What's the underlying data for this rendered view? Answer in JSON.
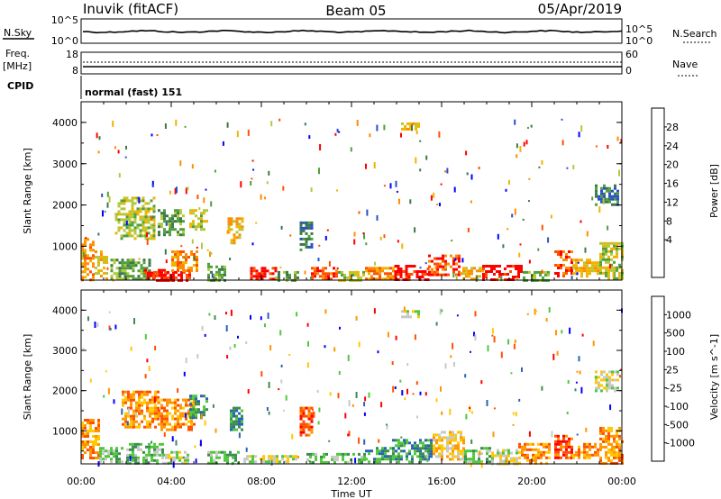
{
  "header": {
    "station": "Inuvik (fitACF)",
    "beam": "Beam 05",
    "date": "05/Apr/2019"
  },
  "param_panels": {
    "nsky_label": "N.Sky",
    "nsearch_label": "N.Search",
    "freq_label": "Freq.",
    "freq_unit": "[MHz]",
    "nave_label": "Nave",
    "cpid_label": "CPID",
    "cpid_value": "normal (fast) 151",
    "left_ticks_top": [
      "10^5",
      "10^0"
    ],
    "right_ticks_top": [
      "10^5",
      "10^0"
    ],
    "left_ticks_freq": [
      "18",
      "8"
    ],
    "right_ticks_nave": [
      "60",
      "0"
    ]
  },
  "chart_data": [
    {
      "type": "heatmap",
      "name": "power-panel",
      "ylabel": "Slant Range [km]",
      "xlabel": "",
      "x_ticks": [
        "00:00",
        "04:00",
        "08:00",
        "12:00",
        "16:00",
        "20:00",
        "00:00"
      ],
      "y_ticks": [
        1000,
        2000,
        3000,
        4000
      ],
      "xlim": [
        0,
        24
      ],
      "ylim": [
        180,
        4500
      ],
      "colorbar": {
        "label": "Power [dB]",
        "ticks": [
          "28",
          "24",
          "20",
          "16",
          "12",
          "8",
          "4"
        ],
        "colors": [
          "#0000ff",
          "#2850c8",
          "#3c7846",
          "#50a03c",
          "#b4c83c",
          "#f0b400",
          "#ff8c00",
          "#ff5000",
          "#ff0000"
        ]
      },
      "blobs": [
        {
          "x0": 0.0,
          "x1": 0.6,
          "r0": 200,
          "r1": 1200,
          "c": 6
        },
        {
          "x0": 0.6,
          "x1": 1.2,
          "r0": 200,
          "r1": 900,
          "c": 5
        },
        {
          "x0": 1.3,
          "x1": 3.0,
          "r0": 200,
          "r1": 700,
          "c": 3
        },
        {
          "x0": 1.5,
          "x1": 3.2,
          "r0": 1200,
          "r1": 2200,
          "c": 4
        },
        {
          "x0": 2.8,
          "x1": 3.8,
          "r0": 200,
          "r1": 450,
          "c": 8
        },
        {
          "x0": 3.2,
          "x1": 4.8,
          "r0": 200,
          "r1": 400,
          "c": 8
        },
        {
          "x0": 4.0,
          "x1": 5.2,
          "r0": 400,
          "r1": 900,
          "c": 6
        },
        {
          "x0": 3.4,
          "x1": 4.6,
          "r0": 1300,
          "r1": 1900,
          "c": 3
        },
        {
          "x0": 4.8,
          "x1": 5.6,
          "r0": 1400,
          "r1": 1900,
          "c": 4
        },
        {
          "x0": 5.6,
          "x1": 6.4,
          "r0": 200,
          "r1": 600,
          "c": 3
        },
        {
          "x0": 6.5,
          "x1": 7.2,
          "r0": 1100,
          "r1": 1700,
          "c": 5
        },
        {
          "x0": 7.5,
          "x1": 8.6,
          "r0": 200,
          "r1": 500,
          "c": 8
        },
        {
          "x0": 8.6,
          "x1": 9.6,
          "r0": 200,
          "r1": 400,
          "c": 3
        },
        {
          "x0": 9.7,
          "x1": 10.3,
          "r0": 900,
          "r1": 1600,
          "c": 2
        },
        {
          "x0": 10.2,
          "x1": 11.4,
          "r0": 200,
          "r1": 500,
          "c": 7
        },
        {
          "x0": 11.4,
          "x1": 12.6,
          "r0": 200,
          "r1": 400,
          "c": 4
        },
        {
          "x0": 12.6,
          "x1": 13.8,
          "r0": 200,
          "r1": 500,
          "c": 6
        },
        {
          "x0": 13.9,
          "x1": 15.4,
          "r0": 200,
          "r1": 550,
          "c": 8
        },
        {
          "x0": 14.2,
          "x1": 15.0,
          "r0": 3850,
          "r1": 4000,
          "c": 5
        },
        {
          "x0": 15.4,
          "x1": 16.8,
          "r0": 300,
          "r1": 800,
          "c": 7
        },
        {
          "x0": 16.8,
          "x1": 17.8,
          "r0": 200,
          "r1": 500,
          "c": 5
        },
        {
          "x0": 17.8,
          "x1": 19.6,
          "r0": 200,
          "r1": 550,
          "c": 8
        },
        {
          "x0": 19.6,
          "x1": 20.8,
          "r0": 200,
          "r1": 400,
          "c": 3
        },
        {
          "x0": 21.0,
          "x1": 21.8,
          "r0": 300,
          "r1": 900,
          "c": 7
        },
        {
          "x0": 21.8,
          "x1": 23.0,
          "r0": 300,
          "r1": 700,
          "c": 5
        },
        {
          "x0": 23.0,
          "x1": 24.0,
          "r0": 200,
          "r1": 1100,
          "c": 4
        },
        {
          "x0": 22.8,
          "x1": 23.8,
          "r0": 2000,
          "r1": 2500,
          "c": 2
        }
      ]
    },
    {
      "type": "heatmap",
      "name": "velocity-panel",
      "ylabel": "Slant Range [km]",
      "xlabel": "Time UT",
      "x_ticks": [
        "00:00",
        "04:00",
        "08:00",
        "12:00",
        "16:00",
        "20:00",
        "00:00"
      ],
      "y_ticks": [
        1000,
        2000,
        3000,
        4000
      ],
      "xlim": [
        0,
        24
      ],
      "ylim": [
        180,
        4500
      ],
      "colorbar": {
        "label": "Velocity [m s^-1]",
        "ticks": [
          "1000",
          "500",
          "100",
          "25",
          "-25",
          "-100",
          "-500",
          "-1000"
        ],
        "colors": [
          "#ff0000",
          "#ff5000",
          "#ff9600",
          "#ffc800",
          "#c8c8c8",
          "#50c83c",
          "#3c8c50",
          "#2864b4",
          "#0000ff"
        ]
      },
      "blobs": [
        {
          "x0": 0.0,
          "x1": 0.8,
          "r0": 300,
          "r1": 1300,
          "c": 2
        },
        {
          "x0": 0.8,
          "x1": 1.8,
          "r0": 200,
          "r1": 600,
          "c": 5
        },
        {
          "x0": 1.8,
          "x1": 3.4,
          "r0": 1100,
          "r1": 2000,
          "c": 2
        },
        {
          "x0": 2.0,
          "x1": 3.6,
          "r0": 200,
          "r1": 700,
          "c": 5
        },
        {
          "x0": 3.6,
          "x1": 4.8,
          "r0": 200,
          "r1": 500,
          "c": 4
        },
        {
          "x0": 3.4,
          "x1": 5.0,
          "r0": 1000,
          "r1": 1800,
          "c": 2
        },
        {
          "x0": 4.8,
          "x1": 5.6,
          "r0": 1300,
          "r1": 1900,
          "c": 6
        },
        {
          "x0": 5.6,
          "x1": 7.0,
          "r0": 200,
          "r1": 500,
          "c": 5
        },
        {
          "x0": 6.6,
          "x1": 7.2,
          "r0": 1000,
          "r1": 1600,
          "c": 6
        },
        {
          "x0": 7.2,
          "x1": 9.6,
          "r0": 200,
          "r1": 400,
          "c": 4
        },
        {
          "x0": 9.7,
          "x1": 10.3,
          "r0": 900,
          "r1": 1600,
          "c": 1
        },
        {
          "x0": 10.0,
          "x1": 12.6,
          "r0": 200,
          "r1": 450,
          "c": 5
        },
        {
          "x0": 12.6,
          "x1": 13.8,
          "r0": 200,
          "r1": 600,
          "c": 6
        },
        {
          "x0": 13.8,
          "x1": 15.6,
          "r0": 200,
          "r1": 800,
          "c": 6
        },
        {
          "x0": 15.6,
          "x1": 17.0,
          "r0": 300,
          "r1": 1000,
          "c": 3
        },
        {
          "x0": 17.0,
          "x1": 18.2,
          "r0": 200,
          "r1": 600,
          "c": 5
        },
        {
          "x0": 18.2,
          "x1": 19.4,
          "r0": 200,
          "r1": 550,
          "c": 4
        },
        {
          "x0": 19.4,
          "x1": 20.8,
          "r0": 200,
          "r1": 700,
          "c": 2
        },
        {
          "x0": 21.0,
          "x1": 21.8,
          "r0": 300,
          "r1": 900,
          "c": 1
        },
        {
          "x0": 21.8,
          "x1": 23.0,
          "r0": 300,
          "r1": 700,
          "c": 2
        },
        {
          "x0": 23.0,
          "x1": 24.0,
          "r0": 200,
          "r1": 1100,
          "c": 2
        },
        {
          "x0": 22.8,
          "x1": 23.8,
          "r0": 2000,
          "r1": 2500,
          "c": 4
        },
        {
          "x0": 14.2,
          "x1": 15.0,
          "r0": 3850,
          "r1": 4000,
          "c": 4
        }
      ]
    }
  ]
}
